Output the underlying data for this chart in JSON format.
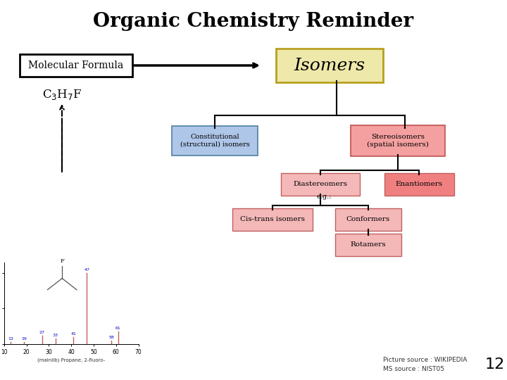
{
  "title": "Organic Chemistry Reminder",
  "title_fontsize": 20,
  "title_fontweight": "bold",
  "bg_color": "#ffffff",
  "mol_formula_label": "Molecular Formula",
  "mol_formula_box_color": "#ffffff",
  "mol_formula_box_edge": "#000000",
  "isomers_label": "Isomers",
  "isomers_box_color": "#eee8aa",
  "isomers_box_edge": "#b8a020",
  "constitutional_label": "Constitutional\n(structural) isomers",
  "constitutional_color": "#aec6e8",
  "constitutional_edge": "#5080a0",
  "stereoisomers_label": "Stereoisomers\n(spatial isomers)",
  "stereoisomers_color": "#f4a0a0",
  "stereo_edge": "#c05050",
  "diastereomers_label": "Diastereomers",
  "diastereomers_color": "#f4b8b8",
  "enantiomers_label": "Enantiomers",
  "enantiomers_color": "#f08080",
  "cis_trans_label": "Cis-trans isomers",
  "cis_trans_color": "#f4b8b8",
  "conformers_label": "Conformers",
  "conformers_color": "#f4b8b8",
  "rotamers_label": "Rotamers",
  "rotamers_color": "#f4b8b8",
  "pink_edge": "#c06060",
  "ms_peaks_mz": [
    13,
    19,
    27,
    33,
    41,
    47,
    58,
    61
  ],
  "ms_peaks_intensity": [
    3,
    3,
    12,
    8,
    10,
    100,
    5,
    18
  ],
  "ms_peak_color": "#c06060",
  "ms_label_color": "#0000cc",
  "ms_xlabel": "(mainlib) Propane, 2-fluoro-",
  "ms_ylabel_ticks": [
    0,
    50,
    100
  ],
  "ms_xlim": [
    10,
    70
  ],
  "ms_ylim": [
    0,
    115
  ],
  "picture_source": "Picture source : WIKIPEDIA",
  "ms_source": "MS source : NIST05",
  "page_number": "12",
  "footer_fontsize": 6.5,
  "page_num_fontsize": 16
}
